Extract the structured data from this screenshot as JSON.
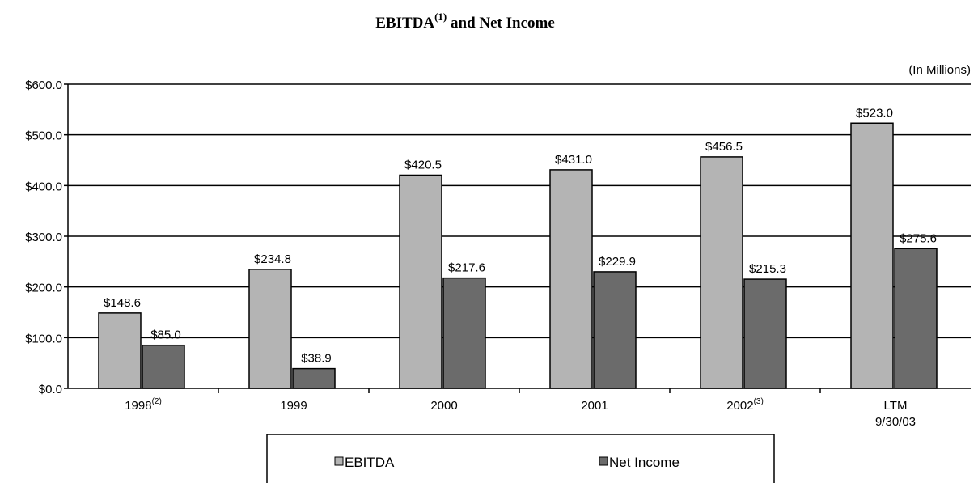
{
  "chart_data": {
    "type": "bar",
    "title": "EBITDA",
    "title_superscript": "(1)",
    "title_suffix": " and Net Income",
    "unit_note": "(In Millions)",
    "categories": [
      "1998",
      "1999",
      "2000",
      "2001",
      "2002",
      "LTM"
    ],
    "category_superscripts": [
      "(2)",
      "",
      "",
      "",
      "(3)",
      ""
    ],
    "category_second_lines": [
      "",
      "",
      "",
      "",
      "",
      "9/30/03"
    ],
    "series": [
      {
        "name": "EBITDA",
        "values": [
          148.6,
          234.8,
          420.5,
          431.0,
          456.5,
          523.0
        ],
        "labels": [
          "$148.6",
          "$234.8",
          "$420.5",
          "$431.0",
          "$456.5",
          "$523.0"
        ],
        "color": "#b4b4b4"
      },
      {
        "name": "Net Income",
        "values": [
          85.0,
          38.9,
          217.6,
          229.9,
          215.3,
          275.6
        ],
        "labels": [
          "$85.0",
          "$38.9",
          "$217.6",
          "$229.9",
          "$215.3",
          "$275.6"
        ],
        "color": "#6b6b6b"
      }
    ],
    "ylim": [
      0,
      600
    ],
    "yticks": [
      0,
      100,
      200,
      300,
      400,
      500,
      600
    ],
    "ytick_labels": [
      "$0.0",
      "$100.0",
      "$200.0",
      "$300.0",
      "$400.0",
      "$500.0",
      "$600.0"
    ],
    "grid": true,
    "legend_position": "bottom"
  }
}
